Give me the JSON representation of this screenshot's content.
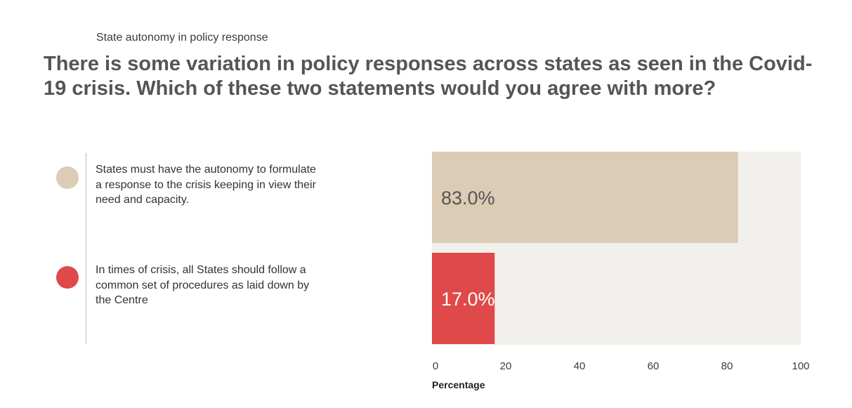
{
  "subtitle": "State autonomy in policy response",
  "title": "There is some variation in policy responses across states as seen in the Covid-19 crisis. Which of these two statements would you agree with more?",
  "legend": [
    {
      "color": "#dccbb5",
      "text": "States must have the autonomy to formulate a response to the crisis keeping in view their need and capacity."
    },
    {
      "color": "#e0494a",
      "text": "In times of crisis, all States should follow a common set of procedures as laid down by the Centre"
    }
  ],
  "chart_data": {
    "type": "bar",
    "orientation": "horizontal",
    "categories": [
      "States must have the autonomy to formulate a response to the crisis keeping in view their need and capacity.",
      "In times of crisis, all States should follow a common set of procedures as laid down by the Centre"
    ],
    "values": [
      83.0,
      17.0
    ],
    "data_labels": [
      "83.0%",
      "17.0%"
    ],
    "colors": [
      "#dccbb5",
      "#e0494a"
    ],
    "xlabel": "Percentage",
    "xlim": [
      0,
      100
    ],
    "xticks": [
      0,
      20,
      40,
      60,
      80,
      100
    ],
    "grid": false,
    "background": "#f2f0ec"
  }
}
